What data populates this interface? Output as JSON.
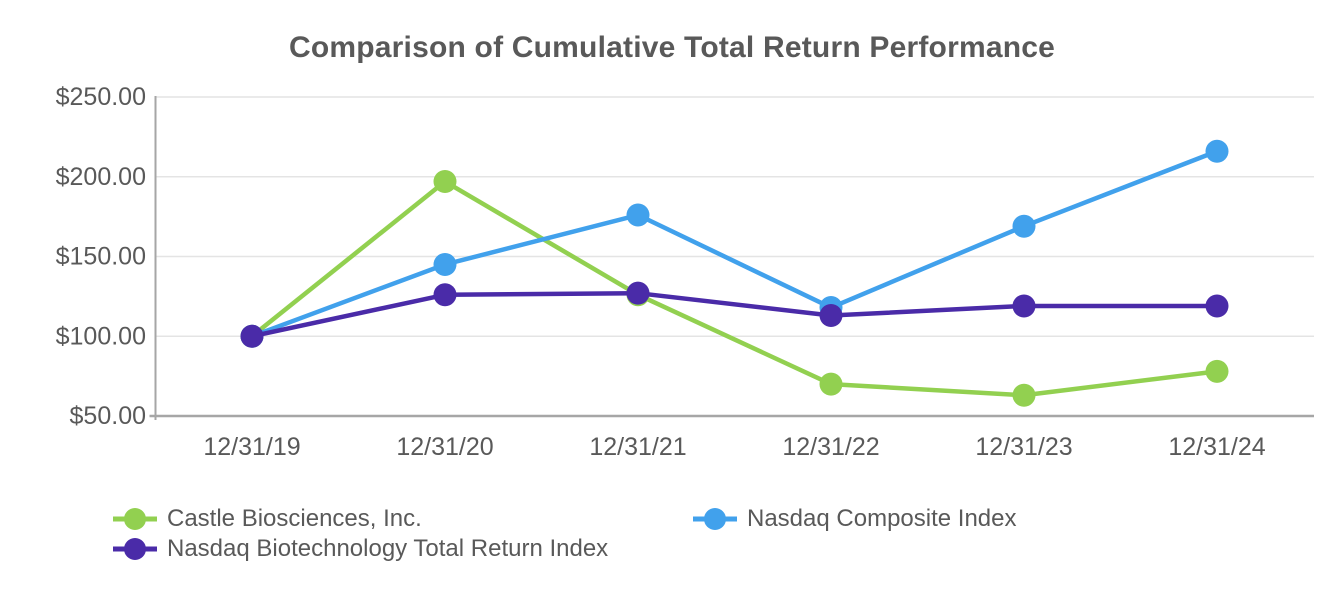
{
  "chart_data": {
    "type": "line",
    "title": "Comparison of Cumulative Total Return Performance",
    "categories": [
      "12/31/19",
      "12/31/20",
      "12/31/21",
      "12/31/22",
      "12/31/23",
      "12/31/24"
    ],
    "series": [
      {
        "name": "Castle Biosciences, Inc.",
        "color": "#92D050",
        "values": [
          100,
          197,
          126,
          70,
          63,
          78
        ]
      },
      {
        "name": "Nasdaq Composite Index",
        "color": "#41A1EC",
        "values": [
          100,
          145,
          176,
          118,
          169,
          216
        ]
      },
      {
        "name": "Nasdaq Biotechnology Total Return Index",
        "color": "#4A2BA8",
        "values": [
          100,
          126,
          127,
          113,
          119,
          119
        ]
      }
    ],
    "ylim": [
      50,
      250
    ],
    "y_ticks": [
      {
        "value": 250,
        "label": "$250.00"
      },
      {
        "value": 200,
        "label": "$200.00"
      },
      {
        "value": 150,
        "label": "$150.00"
      },
      {
        "value": 100,
        "label": "$100.00"
      },
      {
        "value": 50,
        "label": "$50.00"
      }
    ],
    "grid": true,
    "legend_position": "bottom-left",
    "colors": {
      "text": "#595959",
      "gridline": "#E4E4E4",
      "axis": "#A6A6A6"
    }
  }
}
